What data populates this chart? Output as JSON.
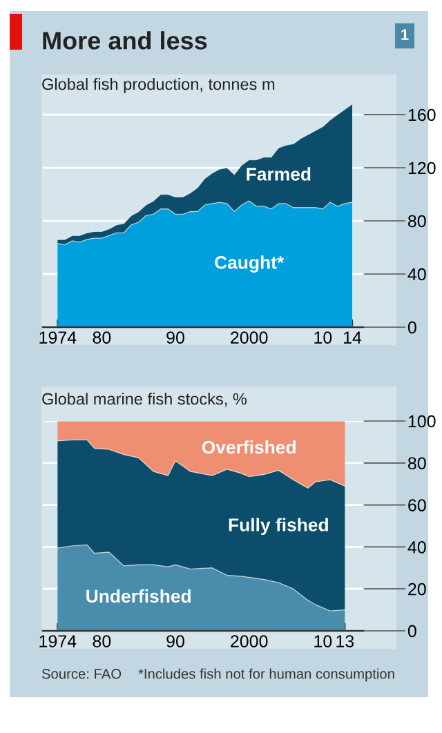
{
  "chart_data": [
    {
      "type": "area",
      "stacked": true,
      "title": "More and less",
      "subtitle": "Global fish production, tonnes m",
      "annotations": [
        "1"
      ],
      "x": [
        1974,
        1975,
        1976,
        1977,
        1978,
        1979,
        1980,
        1981,
        1982,
        1983,
        1984,
        1985,
        1986,
        1987,
        1988,
        1989,
        1990,
        1991,
        1992,
        1993,
        1994,
        1995,
        1996,
        1997,
        1998,
        1999,
        2000,
        2001,
        2002,
        2003,
        2004,
        2005,
        2006,
        2007,
        2008,
        2009,
        2010,
        2011,
        2012,
        2013,
        2014
      ],
      "series": [
        {
          "name": "Caught*",
          "color": "#00a0dc",
          "values": [
            63,
            62,
            65,
            64,
            66,
            67,
            67,
            69,
            71,
            71,
            77,
            79,
            84,
            85,
            89,
            89,
            85,
            85,
            87,
            87,
            92,
            93,
            94,
            93,
            87,
            92,
            95,
            91,
            91,
            89,
            93,
            93,
            90,
            90,
            90,
            90,
            89,
            94,
            91,
            93,
            94
          ]
        },
        {
          "name": "Farmed",
          "color": "#0b4d6b",
          "values": [
            3,
            4,
            4,
            5,
            5,
            5,
            5,
            5,
            6,
            7,
            7,
            8,
            8,
            10,
            11,
            11,
            13,
            13,
            14,
            18,
            20,
            23,
            25,
            27,
            28,
            30,
            31,
            35,
            37,
            39,
            42,
            44,
            48,
            52,
            55,
            58,
            62,
            62,
            69,
            71,
            74
          ]
        }
      ],
      "xlim": [
        1972,
        2015.5
      ],
      "ylim": [
        0,
        170
      ],
      "xticks": [
        1974,
        {
          "value": 1980,
          "label": "80"
        },
        {
          "value": 1985,
          "label": null
        },
        {
          "value": 1990,
          "label": "90"
        },
        {
          "value": 1995,
          "label": null
        },
        2000,
        {
          "value": 2005,
          "label": null
        },
        {
          "value": 2010,
          "label": "10"
        },
        {
          "value": 2014,
          "label": "14"
        }
      ],
      "yticks": [
        0,
        40,
        80,
        120,
        160
      ],
      "grid": "y",
      "legend": false
    },
    {
      "type": "area",
      "stacked": true,
      "subtitle": "Global marine fish stocks, %",
      "annotations": [
        "Source: FAO",
        "*Includes fish not for human consumption"
      ],
      "x": [
        1974,
        1976,
        1978,
        1979,
        1981,
        1983,
        1985,
        1987,
        1989,
        1990,
        1992,
        1995,
        1997,
        1999,
        2000,
        2002,
        2004,
        2006,
        2008,
        2009,
        2011,
        2013
      ],
      "series": [
        {
          "name": "Underfished",
          "color": "#4a8cab",
          "values": [
            39.5,
            40.5,
            41,
            37,
            37.5,
            31,
            31.5,
            31.5,
            30.5,
            31.5,
            29.5,
            30,
            26.5,
            26,
            25.5,
            24.5,
            23,
            20,
            14.5,
            12.5,
            9.5,
            10
          ]
        },
        {
          "name": "Fully fished",
          "color": "#0b4d6b",
          "values": [
            51,
            50.5,
            50,
            50,
            49,
            53,
            51,
            44.5,
            43.5,
            49.5,
            46.5,
            44,
            50.5,
            49,
            48,
            50,
            53.5,
            52,
            53.5,
            58.5,
            62.5,
            59
          ]
        },
        {
          "name": "Overfished",
          "color": "#ee8f71",
          "values": [
            9.5,
            9,
            9,
            13,
            13.5,
            16,
            17.5,
            24,
            26,
            19,
            24,
            26,
            23,
            25,
            26.5,
            25.5,
            23.5,
            28,
            32,
            29,
            28,
            31
          ]
        }
      ],
      "xlim": [
        1972,
        2015.5
      ],
      "ylim": [
        0,
        100
      ],
      "xticks": [
        1974,
        {
          "value": 1980,
          "label": "80"
        },
        {
          "value": 1985,
          "label": null
        },
        {
          "value": 1990,
          "label": "90"
        },
        {
          "value": 1995,
          "label": null
        },
        2000,
        {
          "value": 2005,
          "label": null
        },
        {
          "value": 2010,
          "label": "10"
        },
        {
          "value": 2013,
          "label": "13"
        }
      ],
      "yticks": [
        0,
        20,
        40,
        60,
        80,
        100
      ],
      "grid": "y",
      "legend": false
    }
  ]
}
